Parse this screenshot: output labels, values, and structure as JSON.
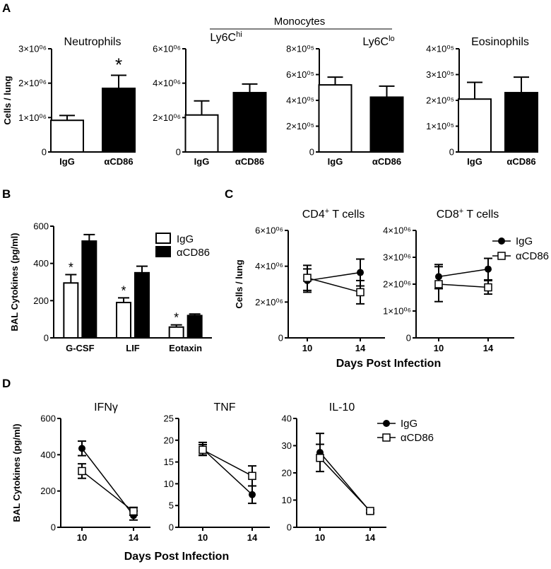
{
  "panel_labels": {
    "A": "A",
    "B": "B",
    "C": "C",
    "D": "D"
  },
  "group_label": "Monocytes",
  "legend": {
    "igg": "IgG",
    "acd86": "αCD86"
  },
  "chart_data": [
    {
      "id": "A1",
      "type": "bar",
      "title": "Neutrophils",
      "ylabel": "Cells / lung",
      "categories": [
        "IgG",
        "αCD86"
      ],
      "values": [
        920000,
        1850000
      ],
      "errors": [
        140000,
        380000
      ],
      "ylim": [
        0,
        3000000
      ],
      "yticks": [
        {
          "v": 0,
          "label": "0"
        },
        {
          "v": 1000000,
          "label": "1×10⁰⁶"
        },
        {
          "v": 2000000,
          "label": "2×10⁰⁶"
        },
        {
          "v": 3000000,
          "label": "3×10⁰⁶"
        }
      ],
      "significance": [
        {
          "category": "αCD86",
          "symbol": "*"
        }
      ]
    },
    {
      "id": "A2",
      "type": "bar",
      "title": "Ly6C",
      "title_sup": "hi",
      "ylabel": "",
      "categories": [
        "IgG",
        "αCD86"
      ],
      "values": [
        2150000,
        3450000
      ],
      "errors": [
        820000,
        500000
      ],
      "ylim": [
        0,
        6000000
      ],
      "yticks": [
        {
          "v": 0,
          "label": "0"
        },
        {
          "v": 2000000,
          "label": "2×10⁰⁶"
        },
        {
          "v": 4000000,
          "label": "4×10⁰⁶"
        },
        {
          "v": 6000000,
          "label": "6×10⁰⁶"
        }
      ],
      "significance": []
    },
    {
      "id": "A3",
      "type": "bar",
      "title": "Ly6C",
      "title_sup": "lo",
      "ylabel": "",
      "categories": [
        "IgG",
        "αCD86"
      ],
      "values": [
        520000,
        425000
      ],
      "errors": [
        60000,
        85000
      ],
      "ylim": [
        0,
        800000
      ],
      "yticks": [
        {
          "v": 0,
          "label": "0"
        },
        {
          "v": 200000,
          "label": "2×10⁰⁵"
        },
        {
          "v": 400000,
          "label": "4×10⁰⁵"
        },
        {
          "v": 600000,
          "label": "6×10⁰⁵"
        },
        {
          "v": 800000,
          "label": "8×10⁰⁵"
        }
      ],
      "significance": []
    },
    {
      "id": "A4",
      "type": "bar",
      "title": "Eosinophils",
      "ylabel": "",
      "categories": [
        "IgG",
        "αCD86"
      ],
      "values": [
        205000,
        230000
      ],
      "errors": [
        65000,
        60000
      ],
      "ylim": [
        0,
        400000
      ],
      "yticks": [
        {
          "v": 0,
          "label": "0"
        },
        {
          "v": 100000,
          "label": "1×10⁰⁵"
        },
        {
          "v": 200000,
          "label": "2×10⁰⁵"
        },
        {
          "v": 300000,
          "label": "3×10⁰⁵"
        },
        {
          "v": 400000,
          "label": "4×10⁰⁵"
        }
      ],
      "significance": []
    },
    {
      "id": "B",
      "type": "bar",
      "title": "",
      "ylabel": "BAL Cytokines (pg/ml)",
      "categories": [
        "G-CSF",
        "LIF",
        "Eotaxin"
      ],
      "series": [
        {
          "name": "IgG",
          "values": [
            295,
            190,
            58
          ],
          "errors": [
            45,
            25,
            12
          ]
        },
        {
          "name": "αCD86",
          "values": [
            520,
            350,
            120
          ],
          "errors": [
            35,
            35,
            8
          ]
        }
      ],
      "ylim": [
        0,
        600
      ],
      "yticks": [
        {
          "v": 0,
          "label": "0"
        },
        {
          "v": 200,
          "label": "200"
        },
        {
          "v": 400,
          "label": "400"
        },
        {
          "v": 600,
          "label": "600"
        }
      ],
      "significance": [
        {
          "category": "G-CSF",
          "series": "IgG",
          "symbol": "*"
        },
        {
          "category": "LIF",
          "series": "IgG",
          "symbol": "*"
        },
        {
          "category": "Eotaxin",
          "series": "IgG",
          "symbol": "*"
        }
      ]
    },
    {
      "id": "C1",
      "type": "line",
      "title": "CD4",
      "title_sup": "+",
      "title_rest": " T cells",
      "ylabel": "Cells / lung",
      "x": [
        10,
        14
      ],
      "series": [
        {
          "name": "IgG",
          "values": [
            3200000,
            3650000
          ],
          "errors": [
            650000,
            750000
          ]
        },
        {
          "name": "αCD86",
          "values": [
            3350000,
            2550000
          ],
          "errors": [
            700000,
            650000
          ]
        }
      ],
      "ylim": [
        0,
        6000000
      ],
      "yticks": [
        {
          "v": 0,
          "label": "0"
        },
        {
          "v": 2000000,
          "label": "2×10⁰⁶"
        },
        {
          "v": 4000000,
          "label": "4×10⁰⁶"
        },
        {
          "v": 6000000,
          "label": "6×10⁰⁶"
        }
      ]
    },
    {
      "id": "C2",
      "type": "line",
      "title": "CD8",
      "title_sup": "+",
      "title_rest": " T cells",
      "ylabel": "",
      "x": [
        10,
        14
      ],
      "series": [
        {
          "name": "IgG",
          "values": [
            2280000,
            2560000
          ],
          "errors": [
            450000,
            400000
          ]
        },
        {
          "name": "αCD86",
          "values": [
            2000000,
            1880000
          ],
          "errors": [
            650000,
            250000
          ]
        }
      ],
      "ylim": [
        0,
        4000000
      ],
      "yticks": [
        {
          "v": 0,
          "label": "0"
        },
        {
          "v": 1000000,
          "label": "1×10⁰⁶"
        },
        {
          "v": 2000000,
          "label": "2×10⁰⁶"
        },
        {
          "v": 3000000,
          "label": "3×10⁰⁶"
        },
        {
          "v": 4000000,
          "label": "4×10⁰⁶"
        }
      ]
    },
    {
      "id": "D1",
      "type": "line",
      "title": "IFNγ",
      "ylabel": "BAL Cytokines (pg/ml)",
      "x": [
        10,
        14
      ],
      "series": [
        {
          "name": "IgG",
          "values": [
            435,
            65
          ],
          "errors": [
            40,
            25
          ]
        },
        {
          "name": "αCD86",
          "values": [
            310,
            88
          ],
          "errors": [
            40,
            22
          ]
        }
      ],
      "ylim": [
        0,
        600
      ],
      "yticks": [
        {
          "v": 0,
          "label": "0"
        },
        {
          "v": 200,
          "label": "200"
        },
        {
          "v": 400,
          "label": "400"
        },
        {
          "v": 600,
          "label": "600"
        }
      ]
    },
    {
      "id": "D2",
      "type": "line",
      "title": "TNF",
      "ylabel": "",
      "x": [
        10,
        14
      ],
      "series": [
        {
          "name": "IgG",
          "values": [
            18.0,
            7.5
          ],
          "errors": [
            1.5,
            2.0
          ]
        },
        {
          "name": "αCD86",
          "values": [
            17.8,
            11.8
          ],
          "errors": [
            1.2,
            2.3
          ]
        }
      ],
      "ylim": [
        0,
        25
      ],
      "yticks": [
        {
          "v": 0,
          "label": "0"
        },
        {
          "v": 5,
          "label": "5"
        },
        {
          "v": 10,
          "label": "10"
        },
        {
          "v": 15,
          "label": "15"
        },
        {
          "v": 20,
          "label": "20"
        },
        {
          "v": 25,
          "label": "25"
        }
      ]
    },
    {
      "id": "D3",
      "type": "line",
      "title": "IL-10",
      "ylabel": "",
      "x": [
        10,
        14
      ],
      "series": [
        {
          "name": "IgG",
          "values": [
            27.5,
            5.8
          ],
          "errors": [
            7.0,
            0.6
          ]
        },
        {
          "name": "αCD86",
          "values": [
            25.5,
            6.0
          ],
          "errors": [
            5.0,
            0.5
          ]
        }
      ],
      "ylim": [
        0,
        40
      ],
      "yticks": [
        {
          "v": 0,
          "label": "0"
        },
        {
          "v": 10,
          "label": "10"
        },
        {
          "v": 20,
          "label": "20"
        },
        {
          "v": 30,
          "label": "30"
        },
        {
          "v": 40,
          "label": "40"
        }
      ]
    }
  ],
  "shared_xlabels": {
    "C": "Days Post Infection",
    "D": "Days Post Infection"
  }
}
